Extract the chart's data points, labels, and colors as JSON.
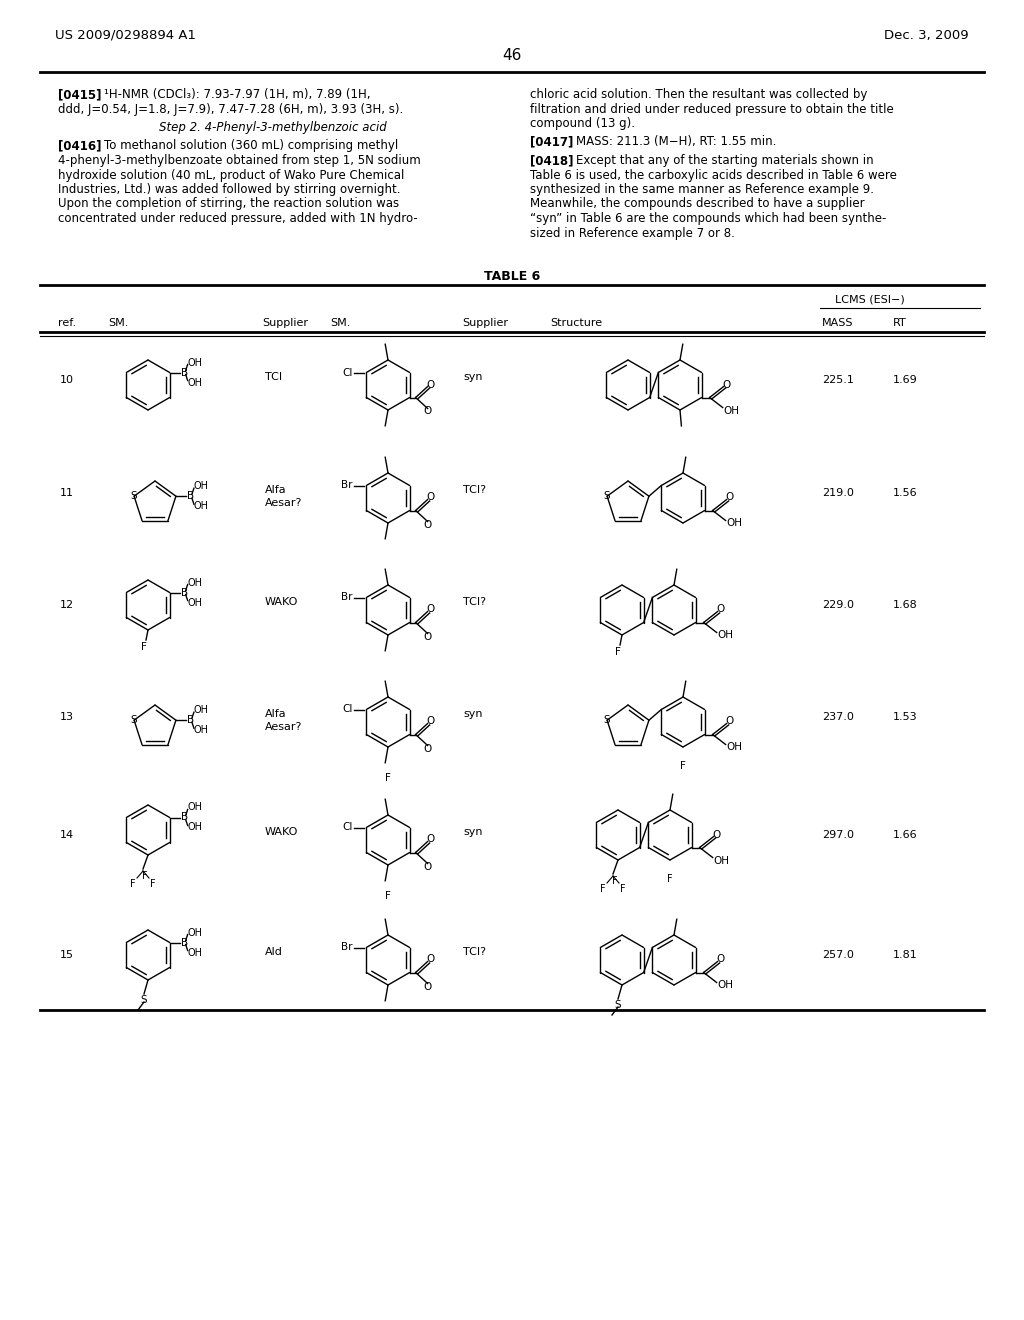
{
  "page_number": "46",
  "patent_number": "US 2009/0298894 A1",
  "patent_date": "Dec. 3, 2009",
  "background_color": "#ffffff",
  "text_color": "#000000",
  "para_0415_line1": "[0415]    ¹H-NMR (CDCl₃): 7.93-7.97 (1H, m), 7.89 (1H,",
  "para_0415_line2": "ddd, J=0.54, J=1.8, J=7.9), 7.47-7.28 (6H, m), 3.93 (3H, s).",
  "step2_header": "Step 2. 4-Phenyl-3-methylbenzoic acid",
  "para_0416_lines": [
    "[0416]    To methanol solution (360 mL) comprising methyl",
    "4-phenyl-3-methylbenzoate obtained from step 1, 5N sodium",
    "hydroxide solution (40 mL, product of Wako Pure Chemical",
    "Industries, Ltd.) was added followed by stirring overnight.",
    "Upon the completion of stirring, the reaction solution was",
    "concentrated under reduced pressure, added with 1N hydro-"
  ],
  "right_col_lines1": [
    "chloric acid solution. Then the resultant was collected by",
    "filtration and dried under reduced pressure to obtain the title",
    "compound (13 g)."
  ],
  "para_0417": "[0417]    MASS: 211.3 (M−H), RT: 1.55 min.",
  "para_0418_lines": [
    "[0418]    Except that any of the starting materials shown in",
    "Table 6 is used, the carboxylic acids described in Table 6 were",
    "synthesized in the same manner as Reference example 9.",
    "Meanwhile, the compounds described to have a supplier",
    "“syn” in Table 6 are the compounds which had been synthe-",
    "sized in Reference example 7 or 8."
  ],
  "table_title": "TABLE 6",
  "lcms_header": "LCMS (ESI−)",
  "rows": [
    {
      "ref": "10",
      "supplier1": "TCI",
      "supplier2": "syn",
      "mass": "225.1",
      "rt": "1.69"
    },
    {
      "ref": "11",
      "supplier1": "Alfa",
      "supplier1b": "Aesar?",
      "supplier2": "TCI?",
      "mass": "219.0",
      "rt": "1.56"
    },
    {
      "ref": "12",
      "supplier1": "WAKO",
      "supplier2": "TCI?",
      "mass": "229.0",
      "rt": "1.68"
    },
    {
      "ref": "13",
      "supplier1": "Alfa",
      "supplier1b": "Aesar?",
      "supplier2": "syn",
      "mass": "237.0",
      "rt": "1.53"
    },
    {
      "ref": "14",
      "supplier1": "WAKO",
      "supplier2": "syn",
      "mass": "297.0",
      "rt": "1.66"
    },
    {
      "ref": "15",
      "supplier1": "Ald",
      "supplier2": "TCI?",
      "mass": "257.0",
      "rt": "1.81"
    }
  ]
}
